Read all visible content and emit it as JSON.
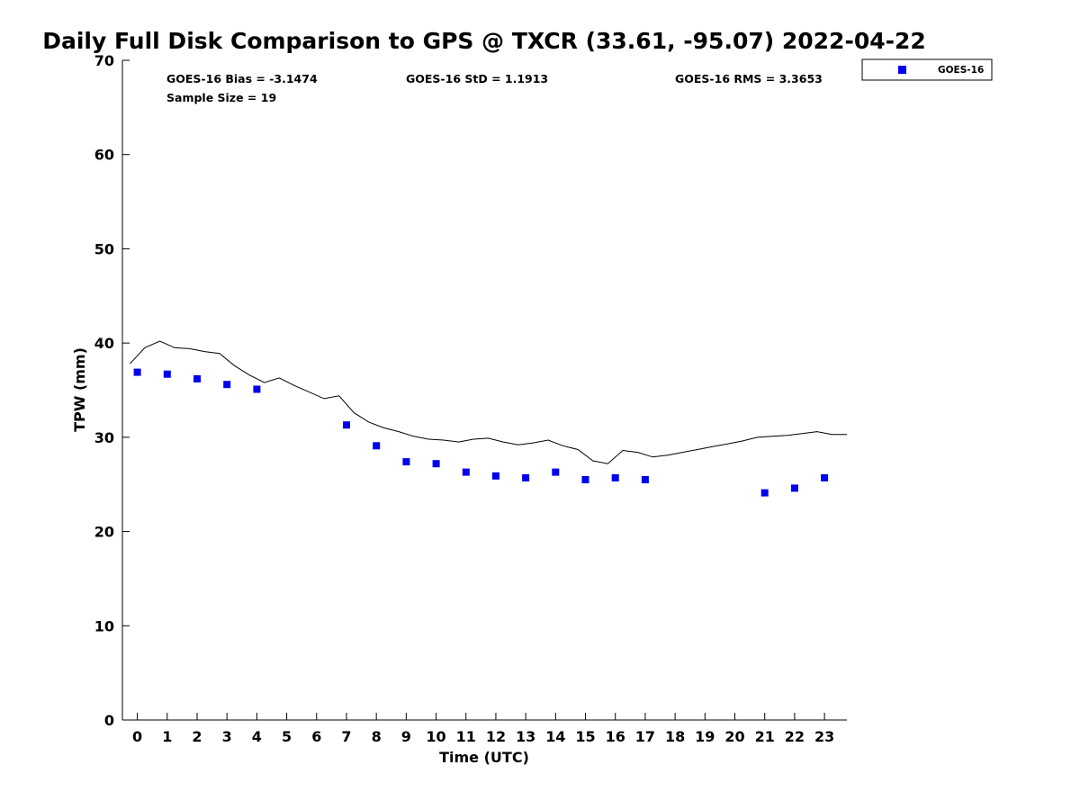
{
  "chart_data": {
    "type": "scatter",
    "title": "Daily Full Disk Comparison to GPS @ TXCR (33.61, -95.07) 2022-04-22",
    "xlabel": "Time (UTC)",
    "ylabel": "TPW (mm)",
    "xlim": [
      -0.5,
      23.75
    ],
    "ylim": [
      0,
      70
    ],
    "x_ticks": [
      "0",
      "1",
      "2",
      "3",
      "4",
      "5",
      "6",
      "7",
      "8",
      "9",
      "10",
      "11",
      "12",
      "13",
      "14",
      "15",
      "16",
      "17",
      "18",
      "19",
      "20",
      "21",
      "22",
      "23"
    ],
    "y_ticks": [
      "0",
      "10",
      "20",
      "30",
      "40",
      "50",
      "60",
      "70"
    ],
    "grid": false,
    "legend_position": "top-right (outside axes)",
    "stats": {
      "bias": "GOES-16 Bias = -3.1474",
      "std": "GOES-16 StD = 1.1913",
      "rms": "GOES-16 RMS = 3.3653",
      "sample": "Sample Size = 19"
    },
    "series": [
      {
        "name": "GOES-16",
        "kind": "scatter",
        "marker": "square",
        "color": "#0000ee",
        "points": [
          {
            "x": 0,
            "y": 36.9
          },
          {
            "x": 1,
            "y": 36.7
          },
          {
            "x": 2,
            "y": 36.2
          },
          {
            "x": 3,
            "y": 35.6
          },
          {
            "x": 4,
            "y": 35.1
          },
          {
            "x": 7,
            "y": 31.3
          },
          {
            "x": 8,
            "y": 29.1
          },
          {
            "x": 9,
            "y": 27.4
          },
          {
            "x": 10,
            "y": 27.2
          },
          {
            "x": 11,
            "y": 26.3
          },
          {
            "x": 12,
            "y": 25.9
          },
          {
            "x": 13,
            "y": 25.7
          },
          {
            "x": 14,
            "y": 26.3
          },
          {
            "x": 15,
            "y": 25.5
          },
          {
            "x": 16,
            "y": 25.7
          },
          {
            "x": 17,
            "y": 25.5
          },
          {
            "x": 21,
            "y": 24.1
          },
          {
            "x": 22,
            "y": 24.6
          },
          {
            "x": 23,
            "y": 25.7
          }
        ]
      },
      {
        "kind": "line",
        "color": "#000000",
        "points": [
          {
            "x": -0.25,
            "y": 37.8
          },
          {
            "x": 0.25,
            "y": 39.5
          },
          {
            "x": 0.75,
            "y": 40.2
          },
          {
            "x": 1.25,
            "y": 39.5
          },
          {
            "x": 1.75,
            "y": 39.4
          },
          {
            "x": 2.25,
            "y": 39.1
          },
          {
            "x": 2.75,
            "y": 38.9
          },
          {
            "x": 3.25,
            "y": 37.6
          },
          {
            "x": 3.75,
            "y": 36.6
          },
          {
            "x": 4.25,
            "y": 35.8
          },
          {
            "x": 4.75,
            "y": 36.3
          },
          {
            "x": 5.25,
            "y": 35.5
          },
          {
            "x": 5.75,
            "y": 34.8
          },
          {
            "x": 6.25,
            "y": 34.1
          },
          {
            "x": 6.75,
            "y": 34.4
          },
          {
            "x": 7.25,
            "y": 32.6
          },
          {
            "x": 7.75,
            "y": 31.6
          },
          {
            "x": 8.25,
            "y": 31.0
          },
          {
            "x": 8.75,
            "y": 30.6
          },
          {
            "x": 9.25,
            "y": 30.1
          },
          {
            "x": 9.75,
            "y": 29.8
          },
          {
            "x": 10.25,
            "y": 29.7
          },
          {
            "x": 10.75,
            "y": 29.5
          },
          {
            "x": 11.25,
            "y": 29.8
          },
          {
            "x": 11.75,
            "y": 29.9
          },
          {
            "x": 12.25,
            "y": 29.5
          },
          {
            "x": 12.75,
            "y": 29.2
          },
          {
            "x": 13.25,
            "y": 29.4
          },
          {
            "x": 13.75,
            "y": 29.7
          },
          {
            "x": 14.25,
            "y": 29.1
          },
          {
            "x": 14.75,
            "y": 28.7
          },
          {
            "x": 15.25,
            "y": 27.5
          },
          {
            "x": 15.75,
            "y": 27.2
          },
          {
            "x": 16.25,
            "y": 28.6
          },
          {
            "x": 16.75,
            "y": 28.4
          },
          {
            "x": 17.25,
            "y": 27.9
          },
          {
            "x": 17.75,
            "y": 28.1
          },
          {
            "x": 18.25,
            "y": 28.4
          },
          {
            "x": 18.75,
            "y": 28.7
          },
          {
            "x": 19.25,
            "y": 29.0
          },
          {
            "x": 19.75,
            "y": 29.3
          },
          {
            "x": 20.25,
            "y": 29.6
          },
          {
            "x": 20.75,
            "y": 30.0
          },
          {
            "x": 21.25,
            "y": 30.1
          },
          {
            "x": 21.75,
            "y": 30.2
          },
          {
            "x": 22.25,
            "y": 30.4
          },
          {
            "x": 22.75,
            "y": 30.6
          },
          {
            "x": 23.25,
            "y": 30.3
          },
          {
            "x": 23.75,
            "y": 30.3
          }
        ]
      }
    ]
  }
}
